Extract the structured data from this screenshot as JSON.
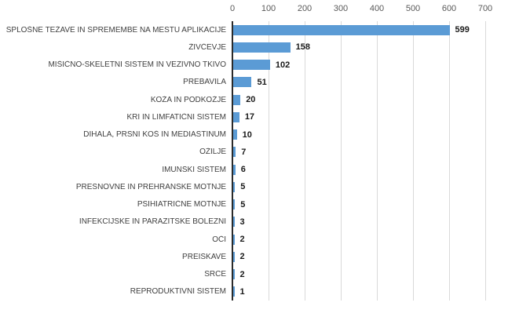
{
  "chart_data": {
    "type": "bar",
    "orientation": "horizontal",
    "categories": [
      "SPLOŠNE TEŽAVE IN SPREMEMBE NA MESTU APLIKACIJE",
      "ŽIVČEVJE",
      "MIŠIČNO-SKELETNI SISTEM IN VEZIVNO TKIVO",
      "PREBAVILA",
      "KOŽA IN PODKOŽJE",
      "KRI IN LIMFATIČNI SISTEM",
      "DIHALA, PRSNI KOŠ IN MEDIASTINUM",
      "OŽILJE",
      "IMUNSKI SISTEM",
      "PRESNOVNE IN PREHRANSKE MOTNJE",
      "PSIHIATRIČNE MOTNJE",
      "INFEKCIJSKE IN PARAZITSKE BOLEZNI",
      "OČI",
      "PREISKAVE",
      "SRCE",
      "REPRODUKTIVNI SISTEM"
    ],
    "values": [
      599,
      158,
      102,
      51,
      20,
      17,
      10,
      7,
      6,
      5,
      5,
      3,
      2,
      2,
      2,
      1
    ],
    "title": "",
    "xlabel": "",
    "ylabel": "",
    "xlim": [
      0,
      700
    ],
    "x_ticks": [
      0,
      100,
      200,
      300,
      400,
      500,
      600,
      700
    ],
    "grid": true,
    "data_labels": true,
    "legend": false,
    "bar_color": "#5b9bd5",
    "value_label_color": "#1a1a1a",
    "axis_text_color": "#595959",
    "category_text_color": "#404040",
    "gridline_color": "#d9d9d9",
    "axis_line_color": "#2b2b2b",
    "background_color": "#ffffff"
  }
}
